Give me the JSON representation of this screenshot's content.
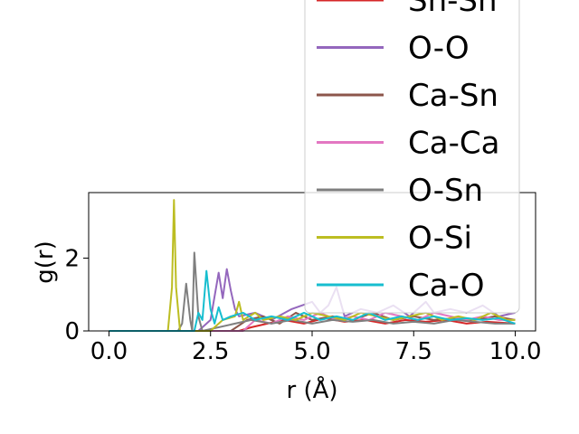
{
  "chart_data": {
    "type": "line",
    "xlabel": "r (Å)",
    "ylabel": "g(r)",
    "xlim": [
      -0.5,
      10.5
    ],
    "ylim": [
      0,
      3.8
    ],
    "x_ticks": [
      "0.0",
      "2.5",
      "5.0",
      "7.5",
      "10.0"
    ],
    "y_ticks": [
      "0",
      "2"
    ],
    "legend_position": "upper-right (overflowing above axes)",
    "series": [
      {
        "name": "Sn-Sn",
        "color": "#d62728",
        "x": [
          0,
          1.5,
          3.2,
          3.5,
          3.9,
          4.3,
          4.8,
          5.3,
          5.8,
          6.3,
          6.8,
          7.3,
          7.8,
          8.3,
          8.8,
          9.3,
          10.0
        ],
        "y": [
          0,
          0,
          0,
          0.1,
          0.2,
          0.3,
          0.2,
          0.35,
          0.25,
          0.3,
          0.2,
          0.3,
          0.25,
          0.3,
          0.2,
          0.25,
          0.2
        ]
      },
      {
        "name": "O-O",
        "color": "#9467bd",
        "x": [
          0,
          2.2,
          2.5,
          2.7,
          2.8,
          2.9,
          3.0,
          3.1,
          3.2,
          3.6,
          4.0,
          4.5,
          5.0,
          5.2,
          5.4,
          5.6,
          5.8,
          6.2,
          6.6,
          7.0,
          7.4,
          7.8,
          8.0,
          8.4,
          8.8,
          9.2,
          9.6,
          10.0
        ],
        "y": [
          0,
          0,
          0.3,
          1.6,
          0.9,
          1.7,
          1.1,
          0.6,
          0.4,
          0.5,
          0.3,
          0.6,
          0.8,
          0.5,
          0.7,
          1.2,
          0.4,
          0.6,
          0.5,
          0.7,
          0.4,
          0.8,
          0.5,
          0.6,
          0.5,
          0.7,
          0.4,
          0.5
        ]
      },
      {
        "name": "Ca-Sn",
        "color": "#8c564b",
        "x": [
          0,
          3.0,
          3.4,
          3.8,
          4.2,
          4.6,
          5.0,
          5.5,
          6.0,
          6.5,
          7.0,
          7.5,
          8.0,
          8.5,
          9.0,
          9.5,
          10.0
        ],
        "y": [
          0,
          0,
          0.3,
          0.4,
          0.2,
          0.5,
          0.3,
          0.4,
          0.3,
          0.5,
          0.3,
          0.4,
          0.3,
          0.35,
          0.3,
          0.4,
          0.3
        ]
      },
      {
        "name": "Ca-Ca",
        "color": "#e377c2",
        "x": [
          0,
          3.3,
          3.6,
          4.0,
          4.4,
          4.8,
          5.2,
          5.6,
          6.0,
          6.4,
          6.8,
          7.2,
          7.6,
          8.0,
          8.4,
          8.8,
          9.2,
          9.6,
          10.0
        ],
        "y": [
          0,
          0,
          0.3,
          0.2,
          0.4,
          0.3,
          0.5,
          0.3,
          0.4,
          0.3,
          0.5,
          0.4,
          0.3,
          0.5,
          0.4,
          0.3,
          0.4,
          0.3,
          0.3
        ]
      },
      {
        "name": "O-Sn",
        "color": "#7f7f7f",
        "x": [
          0,
          1.7,
          1.8,
          1.9,
          2.0,
          2.05,
          2.1,
          2.2,
          2.3,
          3.5,
          4.0,
          4.5,
          5.0,
          5.5,
          6.0,
          6.5,
          7.0,
          7.5,
          8.0,
          8.5,
          9.0,
          9.5,
          10.0
        ],
        "y": [
          0,
          0,
          0.2,
          1.3,
          0.3,
          0,
          2.15,
          0.4,
          0,
          0.3,
          0.2,
          0.3,
          0.2,
          0.3,
          0.25,
          0.3,
          0.2,
          0.25,
          0.2,
          0.3,
          0.25,
          0.2,
          0.2
        ]
      },
      {
        "name": "O-Si",
        "color": "#bcbd22",
        "x": [
          0,
          1.45,
          1.55,
          1.6,
          1.65,
          1.75,
          1.85,
          2.5,
          2.8,
          3.1,
          3.2,
          3.3,
          3.6,
          3.8,
          4.2,
          4.6,
          5.0,
          5.4,
          5.8,
          6.2,
          6.6,
          7.0,
          7.4,
          7.8,
          8.2,
          8.6,
          9.0,
          9.4,
          9.8,
          10.0
        ],
        "y": [
          0,
          0,
          1.2,
          3.6,
          1.2,
          0,
          0,
          0,
          0.3,
          0.4,
          0.8,
          0.3,
          0.5,
          0.3,
          0.4,
          0.3,
          0.5,
          0.4,
          0.3,
          0.5,
          0.4,
          0.3,
          0.4,
          0.5,
          0.3,
          0.4,
          0.3,
          0.5,
          0.3,
          0.3
        ]
      },
      {
        "name": "Ca-O",
        "color": "#17becf",
        "x": [
          0,
          2.1,
          2.2,
          2.3,
          2.4,
          2.5,
          2.6,
          2.7,
          2.8,
          3.0,
          3.3,
          3.6,
          4.0,
          4.4,
          4.8,
          5.2,
          5.6,
          6.0,
          6.4,
          6.8,
          7.2,
          7.6,
          8.0,
          8.4,
          8.8,
          9.2,
          9.6,
          10.0
        ],
        "y": [
          0,
          0,
          0.5,
          0.3,
          1.65,
          0.6,
          0.2,
          0.65,
          0.3,
          0.4,
          0.5,
          0.3,
          0.4,
          0.3,
          0.5,
          0.3,
          0.4,
          0.3,
          0.5,
          0.3,
          0.4,
          0.3,
          0.4,
          0.3,
          0.35,
          0.3,
          0.35,
          0.2
        ]
      }
    ]
  }
}
